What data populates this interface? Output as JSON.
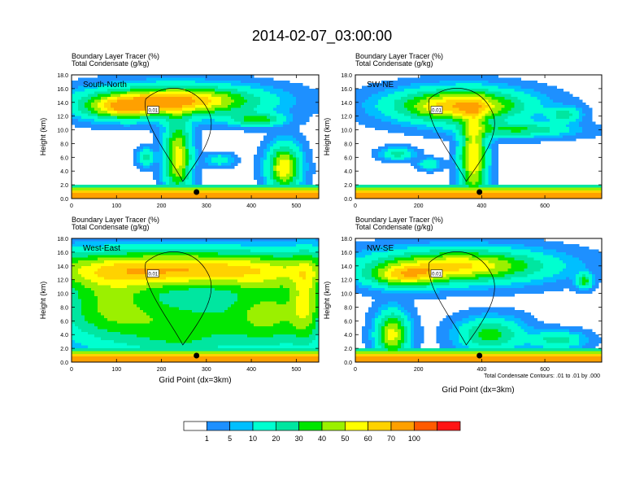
{
  "title": "2014-02-07_03:00:00",
  "chart_data": {
    "type": "heatmap",
    "title": "2014-02-07_03:00:00",
    "field_label_1": "Boundary Layer Tracer   (%)",
    "field_label_2": "Total Condensate   (g/kg)",
    "ylabel": "Height (km)",
    "xlabel": "Grid Point (dx=3km)",
    "contour_note": "Total Condensate Contours: .01 to .01 by .000",
    "contour_label": "0.01",
    "ylim": [
      0,
      18
    ],
    "yticks": [
      "0.0",
      "2.0",
      "4.0",
      "6.0",
      "8.0",
      "10.0",
      "12.0",
      "14.0",
      "16.0",
      "18.0"
    ],
    "colorbar": {
      "labels": [
        "1",
        "5",
        "10",
        "20",
        "30",
        "40",
        "50",
        "60",
        "70",
        "100"
      ],
      "colors": [
        "#ffffff",
        "#1e90ff",
        "#00bfff",
        "#00ffd0",
        "#00e6a0",
        "#00e600",
        "#9bf000",
        "#ffff00",
        "#ffd200",
        "#ffa000",
        "#ff5a00",
        "#ff1414"
      ]
    },
    "panels": [
      {
        "name": "South-North",
        "xlim": [
          0,
          550
        ],
        "xticks": [
          "0",
          "100",
          "200",
          "300",
          "400",
          "500"
        ],
        "marker_x": 278
      },
      {
        "name": "SW-NE",
        "xlim": [
          0,
          780
        ],
        "xticks": [
          "0",
          "200",
          "400",
          "600"
        ],
        "marker_x": 393
      },
      {
        "name": "West-East",
        "xlim": [
          0,
          550
        ],
        "xticks": [
          "0",
          "100",
          "200",
          "300",
          "400",
          "500"
        ],
        "marker_x": 278
      },
      {
        "name": "NW-SE",
        "xlim": [
          0,
          780
        ],
        "xticks": [
          "0",
          "200",
          "400",
          "600"
        ],
        "marker_x": 393
      }
    ]
  }
}
